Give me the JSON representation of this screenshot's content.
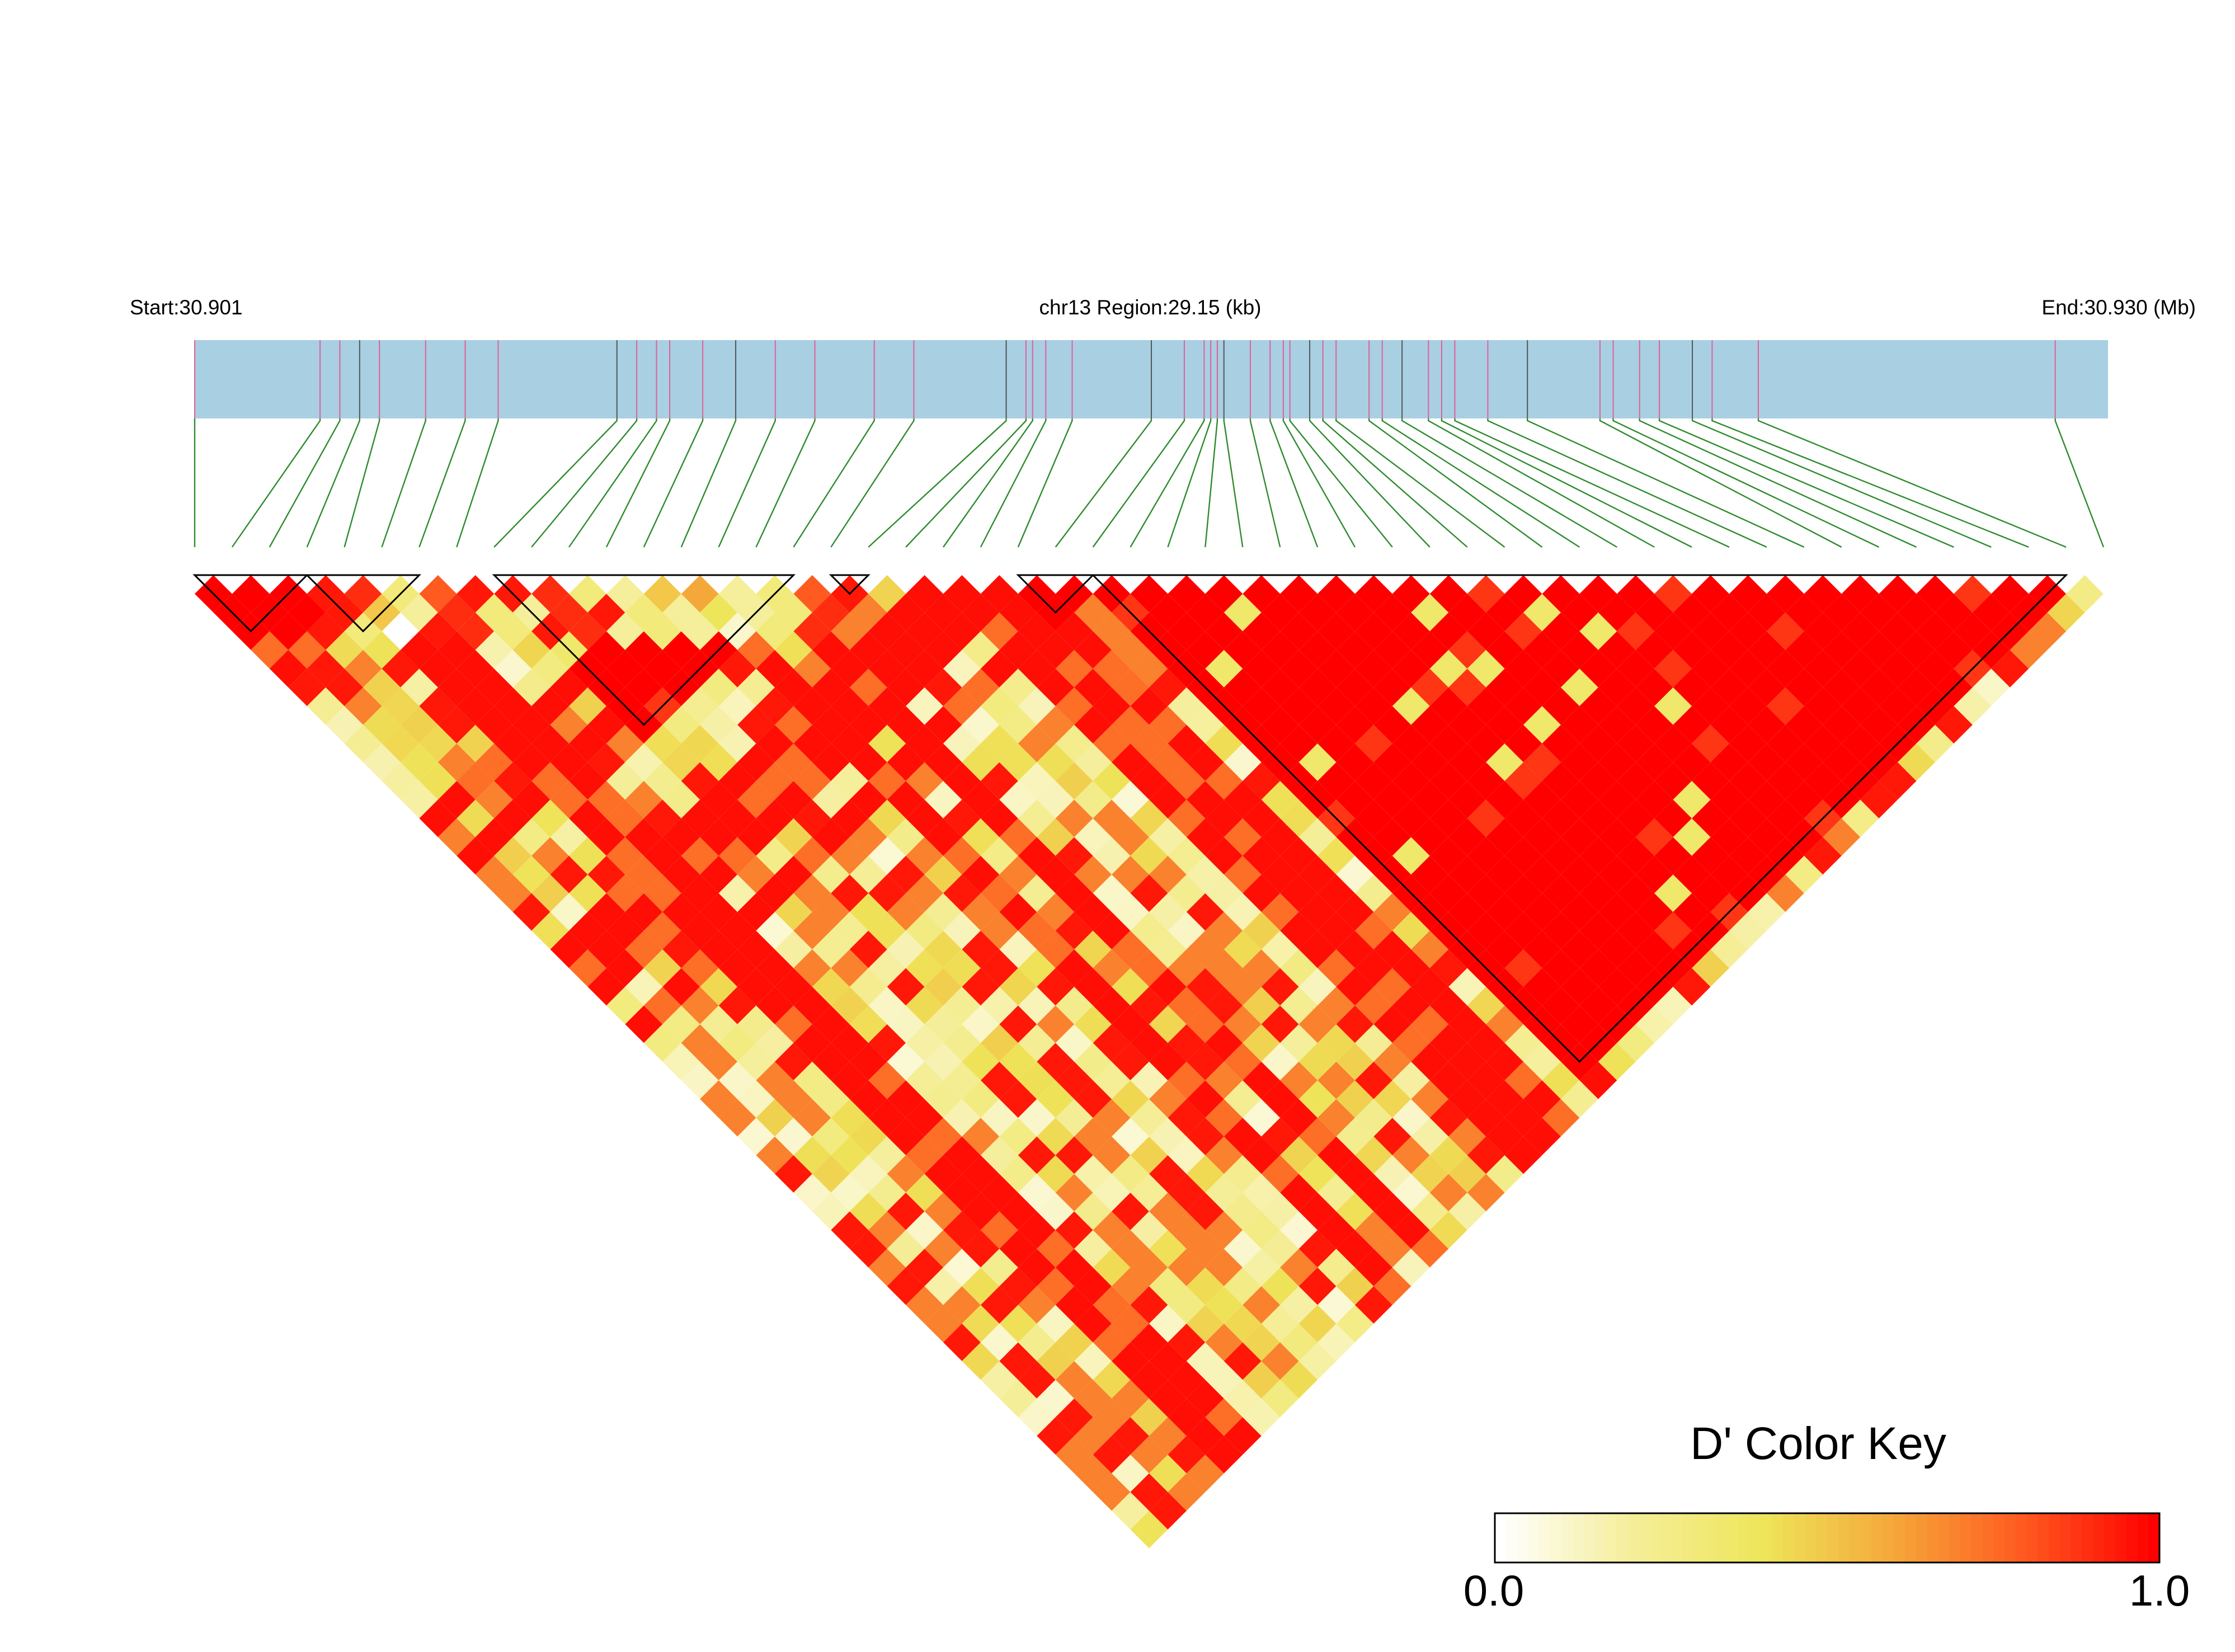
{
  "chart_data": {
    "type": "heatmap",
    "title": "chr13 Region:29.15 (kb)",
    "start_label": "Start:30.901",
    "end_label": "End:30.930 (Mb)",
    "chromosome": "chr13",
    "region_kb": 29.15,
    "start_mb": 30.901,
    "end_mb": 30.93,
    "metric": "D'",
    "n_snps": 52,
    "snp_positions_mb": [
      30.901,
      30.9029,
      30.9032,
      30.9035,
      30.9038,
      30.9045,
      30.9051,
      30.9056,
      30.9074,
      30.9077,
      30.908,
      30.9082,
      30.9087,
      30.9092,
      30.9098,
      30.9104,
      30.9113,
      30.9119,
      30.9133,
      30.9136,
      30.9137,
      30.9139,
      30.9143,
      30.9155,
      30.916,
      30.9163,
      30.9164,
      30.9165,
      30.9166,
      30.917,
      30.9173,
      30.9175,
      30.9176,
      30.9179,
      30.9181,
      30.9183,
      30.9188,
      30.919,
      30.9193,
      30.9197,
      30.9199,
      30.9201,
      30.9206,
      30.9212,
      30.9223,
      30.9225,
      30.9229,
      30.9232,
      30.9237,
      30.924,
      30.9247,
      30.9292
    ],
    "haplotype_blocks": [
      {
        "first_snp": 1,
        "last_snp": 4
      },
      {
        "first_snp": 4,
        "last_snp": 7
      },
      {
        "first_snp": 9,
        "last_snp": 17
      },
      {
        "first_snp": 18,
        "last_snp": 19
      },
      {
        "first_snp": 23,
        "last_snp": 25
      },
      {
        "first_snp": 25,
        "last_snp": 51
      }
    ],
    "dprime_default_note_free": true,
    "dprime_rows": [
      [
        1.0,
        1.0,
        1.0,
        0.95,
        0.9,
        0.3,
        0.8,
        0.95,
        0.95,
        0.9,
        0.3,
        0.2,
        0.5,
        0.6,
        0.2,
        0.3,
        0.8,
        0.95
      ],
      [
        1.0,
        1.0,
        1.0,
        0.95,
        0.5,
        0.2,
        0.9,
        0.3,
        0.2,
        0.9,
        0.95,
        0.3,
        0.2,
        0.4,
        0.2,
        0.3,
        0.9
      ],
      [
        1.0,
        1.0,
        0.95,
        0.3,
        0.0,
        0.95,
        0.9,
        0.3,
        0.95,
        0.9,
        0.2,
        0.3,
        0.2,
        0.1,
        0.3,
        0.9
      ],
      [
        1.0,
        0.95,
        0.95,
        0.9,
        0.2,
        0.3,
        0.95,
        0.2,
        0.3,
        0.95,
        0.1,
        0.0,
        0.2,
        0.3,
        0.95
      ],
      [
        1.0,
        1.0,
        1.0,
        0.95,
        0.9,
        0.95,
        0.8,
        0.95,
        0.9,
        0.95,
        0.3,
        0.2,
        0.4,
        0.95
      ],
      [
        0.6,
        0.9,
        1.0,
        0.95,
        1.0,
        0.95,
        0.9,
        0.95,
        0.9,
        0.3,
        0.2,
        0.5,
        0.9
      ],
      [
        0.95,
        0.2,
        0.95,
        0.9,
        0.3,
        0.2,
        0.95,
        0.8,
        0.3,
        0.5,
        0.2,
        0.9
      ],
      [
        1.0,
        0.95,
        0.9,
        0.5,
        0.95,
        0.3,
        0.95,
        0.9,
        0.2,
        0.3,
        0.9
      ],
      [
        1.0,
        1.0,
        0.95,
        0.9,
        0.95,
        0.9,
        0.95,
        0.95,
        0.3,
        0.95
      ]
    ],
    "color_key": {
      "label": "D' Color Key",
      "min_label": "0.0",
      "max_label": "1.0",
      "min": 0.0,
      "max": 1.0,
      "stops": [
        "#ffffff",
        "#f5ee9a",
        "#eee65a",
        "#f5a83a",
        "#ff5a20",
        "#ff0000"
      ]
    },
    "colors": {
      "track_fill": "#a8cfe2",
      "snp_tick_red": "#e0609a",
      "snp_tick_dark": "#555555",
      "connector": "#2e8b2e",
      "block_outline": "#000000"
    }
  }
}
